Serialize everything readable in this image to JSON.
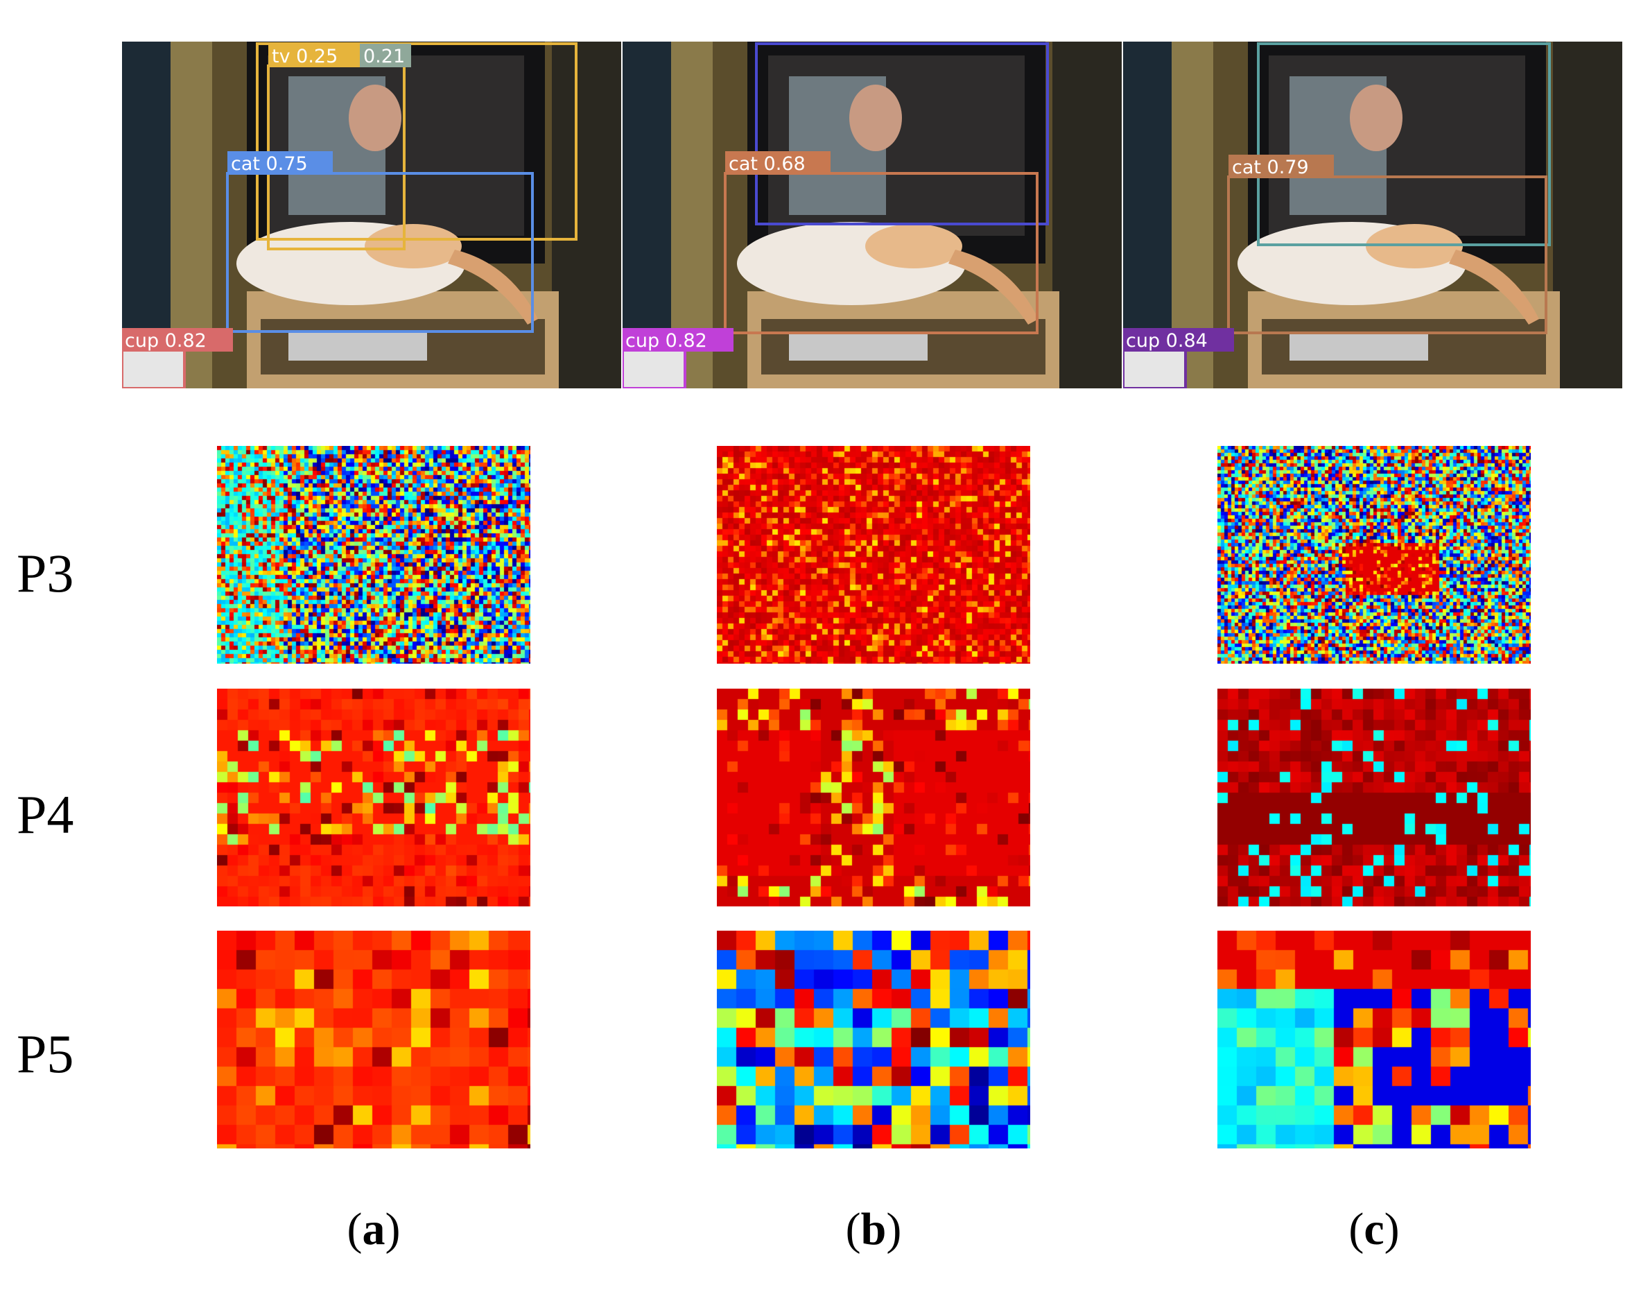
{
  "figure": {
    "row_labels": [
      "P3",
      "P4",
      "P5"
    ],
    "panel_labels": [
      "a",
      "b",
      "c"
    ]
  },
  "panels": [
    {
      "id": "a",
      "detections": [
        {
          "label": "tv 0.25",
          "color": "#e6b43c"
        },
        {
          "label": "0.21",
          "color": "#8fa89a"
        },
        {
          "label": "cat 0.75",
          "color": "#5a8ee6"
        },
        {
          "label": "cup 0.82",
          "color": "#d86a6a"
        }
      ],
      "heatmaps": [
        {
          "level": "P3",
          "style": "noisy"
        },
        {
          "level": "P4",
          "style": "orange-mixed"
        },
        {
          "level": "P5",
          "style": "orange-blocks"
        }
      ]
    },
    {
      "id": "b",
      "detections": [
        {
          "label": "",
          "color": "#4a4ad0"
        },
        {
          "label": "cat 0.68",
          "color": "#c87850"
        },
        {
          "label": "cup 0.82",
          "color": "#c040d8"
        }
      ],
      "heatmaps": [
        {
          "level": "P3",
          "style": "red-dominant"
        },
        {
          "level": "P4",
          "style": "red-structured"
        },
        {
          "level": "P5",
          "style": "mixed-blocks"
        }
      ]
    },
    {
      "id": "c",
      "detections": [
        {
          "label": "",
          "color": "#5aa0a0"
        },
        {
          "label": "cat 0.79",
          "color": "#b87850"
        },
        {
          "label": "cup 0.84",
          "color": "#7030a0"
        }
      ],
      "heatmaps": [
        {
          "level": "P3",
          "style": "fine-noise"
        },
        {
          "level": "P4",
          "style": "deep-red"
        },
        {
          "level": "P5",
          "style": "blue-red-blocks"
        }
      ]
    }
  ]
}
